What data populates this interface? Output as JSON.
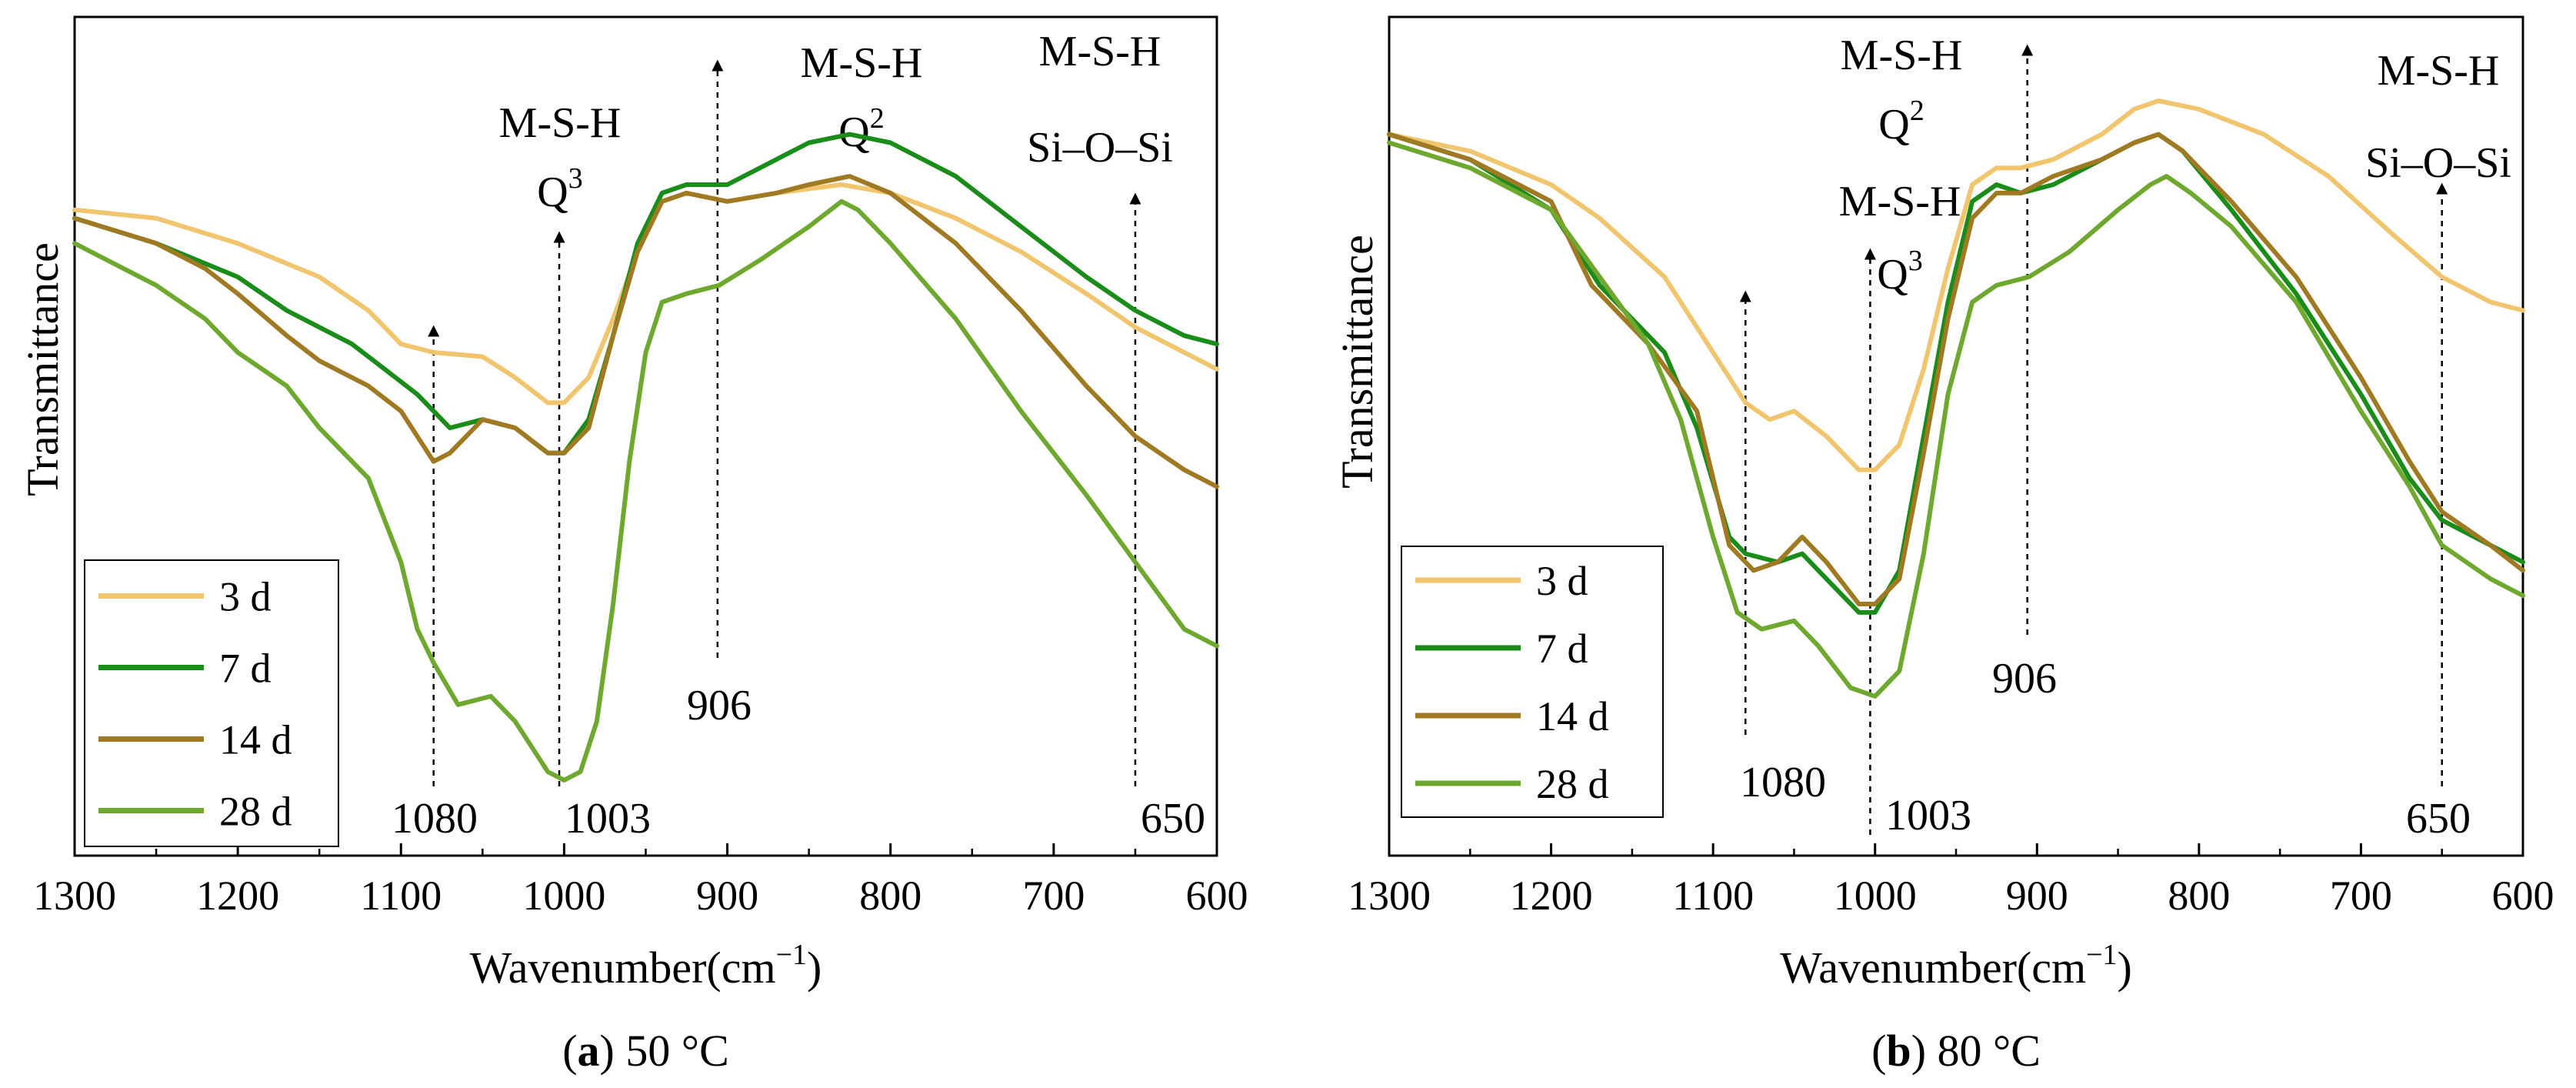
{
  "chart_data": [
    {
      "type": "line",
      "title": "50 °C",
      "caption_letter": "a",
      "caption_open": "(",
      "caption_close": ")",
      "xlabel_main": "Wavenumber(cm",
      "xlabel_sup": "−1",
      "xlabel_close": ")",
      "ylabel": "Transmittance",
      "xlim": [
        1300,
        600
      ],
      "ylim": [
        0,
        100
      ],
      "x_ticks": [
        1300,
        1200,
        1100,
        1000,
        900,
        800,
        700,
        600
      ],
      "legend_position": "bottom-left",
      "series": [
        {
          "name": "3 d",
          "color": "#F0C56E",
          "points": [
            [
              1300,
              77
            ],
            [
              1250,
              76
            ],
            [
              1200,
              73
            ],
            [
              1150,
              69
            ],
            [
              1120,
              65
            ],
            [
              1100,
              61
            ],
            [
              1080,
              60
            ],
            [
              1050,
              59.5
            ],
            [
              1030,
              57
            ],
            [
              1010,
              54
            ],
            [
              1000,
              54
            ],
            [
              985,
              57
            ],
            [
              970,
              64
            ],
            [
              955,
              72
            ],
            [
              940,
              78
            ],
            [
              925,
              79
            ],
            [
              900,
              78
            ],
            [
              870,
              79
            ],
            [
              850,
              79.5
            ],
            [
              830,
              80
            ],
            [
              800,
              79
            ],
            [
              760,
              76
            ],
            [
              720,
              72
            ],
            [
              680,
              67
            ],
            [
              650,
              63
            ],
            [
              620,
              60
            ],
            [
              600,
              58
            ]
          ]
        },
        {
          "name": "7 d",
          "color": "#1A8C1A",
          "points": [
            [
              1300,
              76
            ],
            [
              1250,
              73
            ],
            [
              1200,
              69
            ],
            [
              1170,
              65
            ],
            [
              1130,
              61
            ],
            [
              1110,
              58
            ],
            [
              1090,
              55
            ],
            [
              1070,
              51
            ],
            [
              1050,
              52
            ],
            [
              1030,
              51
            ],
            [
              1010,
              48
            ],
            [
              1000,
              48
            ],
            [
              985,
              52
            ],
            [
              970,
              62
            ],
            [
              955,
              73
            ],
            [
              940,
              79
            ],
            [
              925,
              80
            ],
            [
              900,
              80
            ],
            [
              870,
              83
            ],
            [
              850,
              85
            ],
            [
              825,
              86
            ],
            [
              800,
              85
            ],
            [
              760,
              81
            ],
            [
              720,
              75
            ],
            [
              680,
              69
            ],
            [
              650,
              65
            ],
            [
              620,
              62
            ],
            [
              600,
              61
            ]
          ]
        },
        {
          "name": "14 d",
          "color": "#A07A22",
          "points": [
            [
              1300,
              76
            ],
            [
              1250,
              73
            ],
            [
              1220,
              70
            ],
            [
              1200,
              67
            ],
            [
              1170,
              62
            ],
            [
              1150,
              59
            ],
            [
              1120,
              56
            ],
            [
              1100,
              53
            ],
            [
              1080,
              47
            ],
            [
              1070,
              48
            ],
            [
              1050,
              52
            ],
            [
              1030,
              51
            ],
            [
              1010,
              48
            ],
            [
              1000,
              48
            ],
            [
              985,
              51
            ],
            [
              970,
              62
            ],
            [
              955,
              72
            ],
            [
              940,
              78
            ],
            [
              925,
              79
            ],
            [
              900,
              78
            ],
            [
              870,
              79
            ],
            [
              850,
              80
            ],
            [
              825,
              81
            ],
            [
              800,
              79
            ],
            [
              760,
              73
            ],
            [
              720,
              65
            ],
            [
              680,
              56
            ],
            [
              650,
              50
            ],
            [
              620,
              46
            ],
            [
              600,
              44
            ]
          ]
        },
        {
          "name": "28 d",
          "color": "#6FA82E",
          "points": [
            [
              1300,
              73
            ],
            [
              1250,
              68
            ],
            [
              1220,
              64
            ],
            [
              1200,
              60
            ],
            [
              1170,
              56
            ],
            [
              1150,
              51
            ],
            [
              1120,
              45
            ],
            [
              1100,
              35
            ],
            [
              1090,
              27
            ],
            [
              1080,
              23
            ],
            [
              1065,
              18
            ],
            [
              1045,
              19
            ],
            [
              1030,
              16
            ],
            [
              1010,
              10
            ],
            [
              1000,
              9
            ],
            [
              990,
              10
            ],
            [
              980,
              16
            ],
            [
              970,
              30
            ],
            [
              960,
              47
            ],
            [
              950,
              60
            ],
            [
              940,
              66
            ],
            [
              925,
              67
            ],
            [
              905,
              68
            ],
            [
              880,
              71
            ],
            [
              850,
              75
            ],
            [
              830,
              78
            ],
            [
              820,
              77
            ],
            [
              800,
              73
            ],
            [
              760,
              64
            ],
            [
              720,
              53
            ],
            [
              680,
              43
            ],
            [
              650,
              35
            ],
            [
              620,
              27
            ],
            [
              600,
              25
            ]
          ]
        }
      ],
      "annotations": [
        {
          "x": 1080,
          "label": "1080",
          "top": [
            "",
            ""
          ]
        },
        {
          "x": 1003,
          "label": "1003",
          "top": [
            "M-S-H",
            "Q"
          ],
          "sup": "3"
        },
        {
          "x": 906,
          "label": "906",
          "top": [
            "M-S-H",
            "Q"
          ],
          "sup": "2"
        },
        {
          "x": 650,
          "label": "650",
          "top": [
            "M-S-H",
            "Si–O–Si"
          ]
        }
      ]
    },
    {
      "type": "line",
      "title": "80 °C",
      "caption_letter": "b",
      "caption_open": "(",
      "caption_close": ")",
      "xlabel_main": "Wavenumber(cm",
      "xlabel_sup": "−1",
      "xlabel_close": ")",
      "ylabel": "Transmittance",
      "xlim": [
        1300,
        600
      ],
      "ylim": [
        0,
        100
      ],
      "x_ticks": [
        1300,
        1200,
        1100,
        1000,
        900,
        800,
        700,
        600
      ],
      "legend_position": "bottom-left",
      "series": [
        {
          "name": "3 d",
          "color": "#F0C56E",
          "points": [
            [
              1300,
              86
            ],
            [
              1250,
              84
            ],
            [
              1200,
              80
            ],
            [
              1170,
              76
            ],
            [
              1130,
              69
            ],
            [
              1100,
              60
            ],
            [
              1080,
              54
            ],
            [
              1065,
              52
            ],
            [
              1050,
              53
            ],
            [
              1030,
              50
            ],
            [
              1010,
              46
            ],
            [
              1000,
              46
            ],
            [
              985,
              49
            ],
            [
              970,
              58
            ],
            [
              955,
              70
            ],
            [
              940,
              80
            ],
            [
              925,
              82
            ],
            [
              910,
              82
            ],
            [
              890,
              83
            ],
            [
              860,
              86
            ],
            [
              840,
              89
            ],
            [
              825,
              90
            ],
            [
              800,
              89
            ],
            [
              760,
              86
            ],
            [
              720,
              81
            ],
            [
              680,
              74
            ],
            [
              650,
              69
            ],
            [
              620,
              66
            ],
            [
              600,
              65
            ]
          ]
        },
        {
          "name": "7 d",
          "color": "#1A8C1A",
          "points": [
            [
              1300,
              86
            ],
            [
              1250,
              83
            ],
            [
              1200,
              77
            ],
            [
              1170,
              68
            ],
            [
              1130,
              60
            ],
            [
              1110,
              51
            ],
            [
              1090,
              38
            ],
            [
              1080,
              36
            ],
            [
              1060,
              35
            ],
            [
              1045,
              36
            ],
            [
              1030,
              33
            ],
            [
              1010,
              29
            ],
            [
              1000,
              29
            ],
            [
              985,
              34
            ],
            [
              970,
              50
            ],
            [
              955,
              66
            ],
            [
              940,
              78
            ],
            [
              925,
              80
            ],
            [
              910,
              79
            ],
            [
              890,
              80
            ],
            [
              860,
              83
            ],
            [
              840,
              85
            ],
            [
              825,
              86
            ],
            [
              810,
              84
            ],
            [
              780,
              77
            ],
            [
              740,
              67
            ],
            [
              700,
              55
            ],
            [
              670,
              45
            ],
            [
              650,
              40
            ],
            [
              620,
              37
            ],
            [
              600,
              35
            ]
          ]
        },
        {
          "name": "14 d",
          "color": "#A07A22",
          "points": [
            [
              1300,
              86
            ],
            [
              1250,
              83
            ],
            [
              1200,
              78
            ],
            [
              1175,
              68
            ],
            [
              1140,
              61
            ],
            [
              1110,
              53
            ],
            [
              1090,
              37
            ],
            [
              1075,
              34
            ],
            [
              1060,
              35
            ],
            [
              1045,
              38
            ],
            [
              1030,
              35
            ],
            [
              1010,
              30
            ],
            [
              1000,
              30
            ],
            [
              985,
              33
            ],
            [
              970,
              48
            ],
            [
              955,
              64
            ],
            [
              940,
              76
            ],
            [
              925,
              79
            ],
            [
              910,
              79
            ],
            [
              890,
              81
            ],
            [
              860,
              83
            ],
            [
              840,
              85
            ],
            [
              825,
              86
            ],
            [
              810,
              84
            ],
            [
              780,
              78
            ],
            [
              740,
              69
            ],
            [
              700,
              57
            ],
            [
              670,
              47
            ],
            [
              650,
              41
            ],
            [
              620,
              37
            ],
            [
              600,
              34
            ]
          ]
        },
        {
          "name": "28 d",
          "color": "#6FA82E",
          "points": [
            [
              1300,
              85
            ],
            [
              1250,
              82
            ],
            [
              1200,
              77
            ],
            [
              1170,
              69
            ],
            [
              1140,
              61
            ],
            [
              1120,
              52
            ],
            [
              1100,
              38
            ],
            [
              1085,
              29
            ],
            [
              1070,
              27
            ],
            [
              1050,
              28
            ],
            [
              1035,
              25
            ],
            [
              1015,
              20
            ],
            [
              1000,
              19
            ],
            [
              985,
              22
            ],
            [
              970,
              36
            ],
            [
              955,
              55
            ],
            [
              940,
              66
            ],
            [
              925,
              68
            ],
            [
              905,
              69
            ],
            [
              880,
              72
            ],
            [
              850,
              77
            ],
            [
              830,
              80
            ],
            [
              820,
              81
            ],
            [
              805,
              79
            ],
            [
              780,
              75
            ],
            [
              740,
              66
            ],
            [
              700,
              53
            ],
            [
              670,
              44
            ],
            [
              650,
              37
            ],
            [
              620,
              33
            ],
            [
              600,
              31
            ]
          ]
        }
      ],
      "annotations": [
        {
          "x": 1080,
          "label": "1080",
          "top": [
            "",
            ""
          ]
        },
        {
          "x": 1003,
          "label": "1003",
          "top": [
            "M-S-H",
            "Q"
          ],
          "sup": "3"
        },
        {
          "x": 906,
          "label": "906",
          "top": [
            "M-S-H",
            "Q"
          ],
          "sup": "2"
        },
        {
          "x": 650,
          "label": "650",
          "top": [
            "M-S-H",
            "Si–O–Si"
          ]
        }
      ]
    }
  ]
}
